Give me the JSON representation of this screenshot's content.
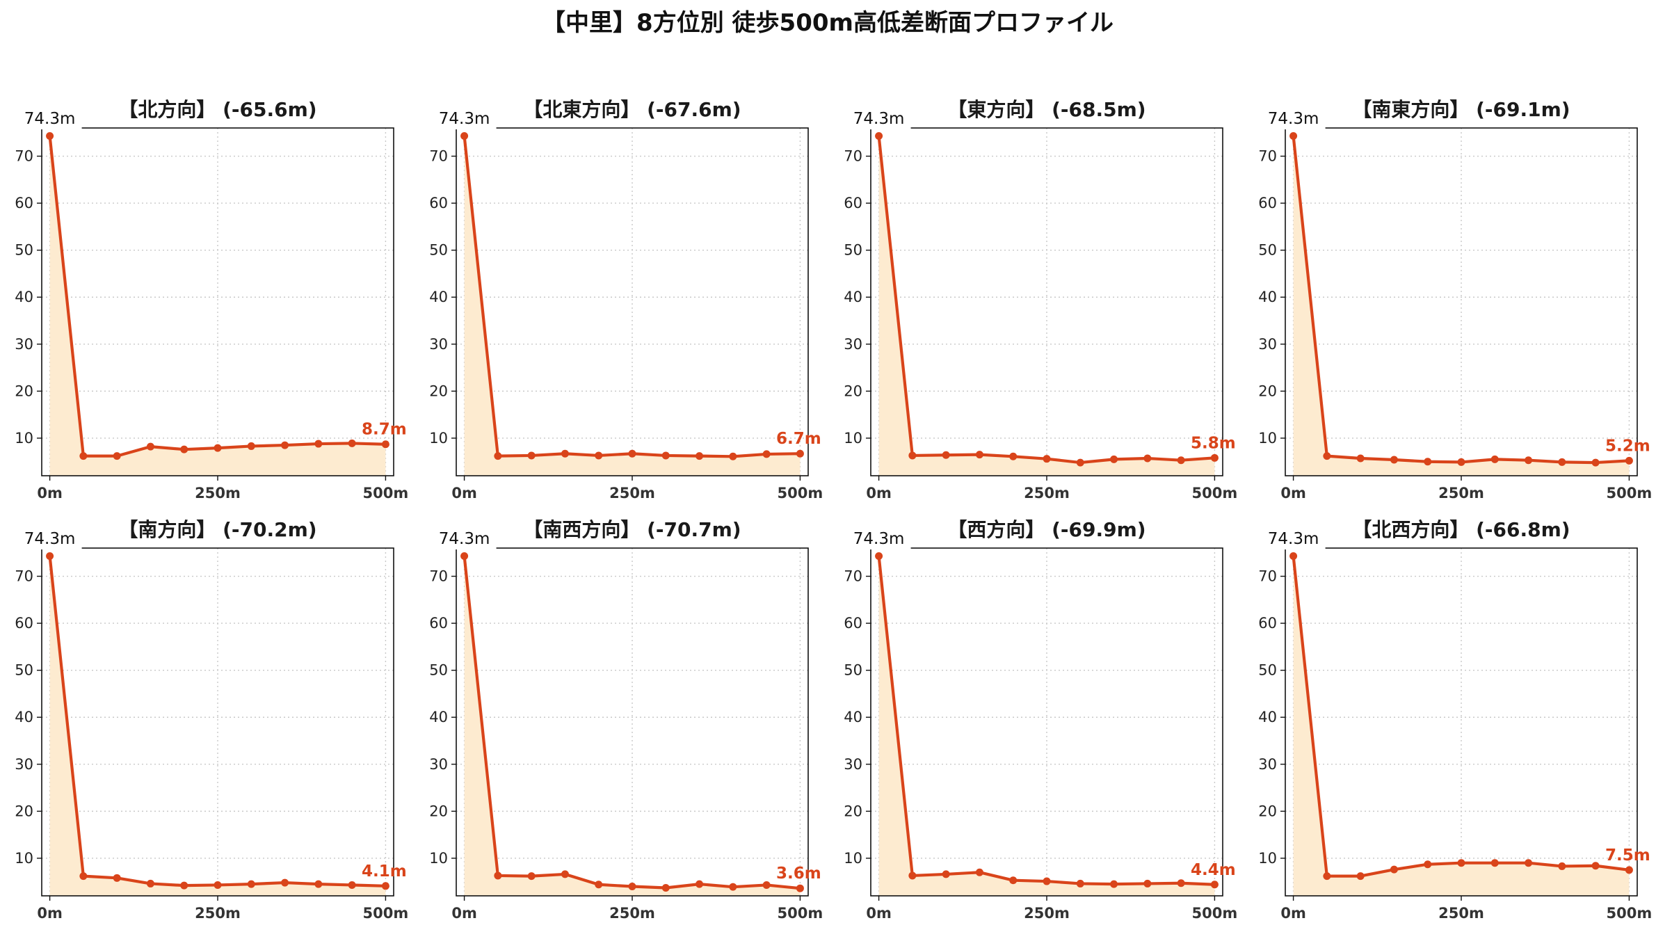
{
  "title": "【中里】8方位別 徒歩500m高低差断面プロファイル",
  "colors": {
    "line": "#d9441a",
    "fill": "#fdebd0",
    "grid": "#c8c8c8",
    "axis": "#111111"
  },
  "chart_data": [
    {
      "type": "area",
      "title": "【北方向】 (-65.6m)",
      "x": [
        0,
        50,
        100,
        150,
        200,
        250,
        300,
        350,
        400,
        450,
        500
      ],
      "values": [
        74.3,
        6.2,
        6.2,
        8.2,
        7.6,
        7.9,
        8.3,
        8.5,
        8.8,
        8.9,
        8.7
      ],
      "xticks": [
        "0m",
        "250m",
        "500m"
      ],
      "yticks": [
        10,
        20,
        30,
        40,
        50,
        60,
        70
      ],
      "ylim": [
        2,
        76
      ],
      "xlim": [
        -12,
        512
      ],
      "start_label": "74.3m",
      "end_label": "8.7m",
      "grid": true
    },
    {
      "type": "area",
      "title": "【北東方向】 (-67.6m)",
      "x": [
        0,
        50,
        100,
        150,
        200,
        250,
        300,
        350,
        400,
        450,
        500
      ],
      "values": [
        74.3,
        6.2,
        6.3,
        6.7,
        6.3,
        6.7,
        6.3,
        6.2,
        6.1,
        6.6,
        6.7
      ],
      "xticks": [
        "0m",
        "250m",
        "500m"
      ],
      "yticks": [
        10,
        20,
        30,
        40,
        50,
        60,
        70
      ],
      "ylim": [
        2,
        76
      ],
      "xlim": [
        -12,
        512
      ],
      "start_label": "74.3m",
      "end_label": "6.7m",
      "grid": true
    },
    {
      "type": "area",
      "title": "【東方向】 (-68.5m)",
      "x": [
        0,
        50,
        100,
        150,
        200,
        250,
        300,
        350,
        400,
        450,
        500
      ],
      "values": [
        74.3,
        6.3,
        6.4,
        6.5,
        6.1,
        5.6,
        4.8,
        5.5,
        5.7,
        5.3,
        5.8
      ],
      "xticks": [
        "0m",
        "250m",
        "500m"
      ],
      "yticks": [
        10,
        20,
        30,
        40,
        50,
        60,
        70
      ],
      "ylim": [
        2,
        76
      ],
      "xlim": [
        -12,
        512
      ],
      "start_label": "74.3m",
      "end_label": "5.8m",
      "grid": true
    },
    {
      "type": "area",
      "title": "【南東方向】 (-69.1m)",
      "x": [
        0,
        50,
        100,
        150,
        200,
        250,
        300,
        350,
        400,
        450,
        500
      ],
      "values": [
        74.3,
        6.2,
        5.7,
        5.4,
        5.0,
        4.9,
        5.5,
        5.3,
        4.9,
        4.8,
        5.2
      ],
      "xticks": [
        "0m",
        "250m",
        "500m"
      ],
      "yticks": [
        10,
        20,
        30,
        40,
        50,
        60,
        70
      ],
      "ylim": [
        2,
        76
      ],
      "xlim": [
        -12,
        512
      ],
      "start_label": "74.3m",
      "end_label": "5.2m",
      "grid": true
    },
    {
      "type": "area",
      "title": "【南方向】 (-70.2m)",
      "x": [
        0,
        50,
        100,
        150,
        200,
        250,
        300,
        350,
        400,
        450,
        500
      ],
      "values": [
        74.3,
        6.2,
        5.8,
        4.6,
        4.2,
        4.3,
        4.5,
        4.8,
        4.5,
        4.3,
        4.1
      ],
      "xticks": [
        "0m",
        "250m",
        "500m"
      ],
      "yticks": [
        10,
        20,
        30,
        40,
        50,
        60,
        70
      ],
      "ylim": [
        2,
        76
      ],
      "xlim": [
        -12,
        512
      ],
      "start_label": "74.3m",
      "end_label": "4.1m",
      "grid": true
    },
    {
      "type": "area",
      "title": "【南西方向】 (-70.7m)",
      "x": [
        0,
        50,
        100,
        150,
        200,
        250,
        300,
        350,
        400,
        450,
        500
      ],
      "values": [
        74.3,
        6.3,
        6.2,
        6.6,
        4.4,
        4.0,
        3.7,
        4.5,
        3.9,
        4.3,
        3.6
      ],
      "xticks": [
        "0m",
        "250m",
        "500m"
      ],
      "yticks": [
        10,
        20,
        30,
        40,
        50,
        60,
        70
      ],
      "ylim": [
        2,
        76
      ],
      "xlim": [
        -12,
        512
      ],
      "start_label": "74.3m",
      "end_label": "3.6m",
      "grid": true
    },
    {
      "type": "area",
      "title": "【西方向】 (-69.9m)",
      "x": [
        0,
        50,
        100,
        150,
        200,
        250,
        300,
        350,
        400,
        450,
        500
      ],
      "values": [
        74.3,
        6.3,
        6.6,
        7.0,
        5.3,
        5.1,
        4.6,
        4.5,
        4.6,
        4.7,
        4.4
      ],
      "xticks": [
        "0m",
        "250m",
        "500m"
      ],
      "yticks": [
        10,
        20,
        30,
        40,
        50,
        60,
        70
      ],
      "ylim": [
        2,
        76
      ],
      "xlim": [
        -12,
        512
      ],
      "start_label": "74.3m",
      "end_label": "4.4m",
      "grid": true
    },
    {
      "type": "area",
      "title": "【北西方向】 (-66.8m)",
      "x": [
        0,
        50,
        100,
        150,
        200,
        250,
        300,
        350,
        400,
        450,
        500
      ],
      "values": [
        74.3,
        6.2,
        6.2,
        7.6,
        8.7,
        9.0,
        9.0,
        9.0,
        8.3,
        8.4,
        7.5
      ],
      "xticks": [
        "0m",
        "250m",
        "500m"
      ],
      "yticks": [
        10,
        20,
        30,
        40,
        50,
        60,
        70
      ],
      "ylim": [
        2,
        76
      ],
      "xlim": [
        -12,
        512
      ],
      "start_label": "74.3m",
      "end_label": "7.5m",
      "grid": true
    }
  ]
}
